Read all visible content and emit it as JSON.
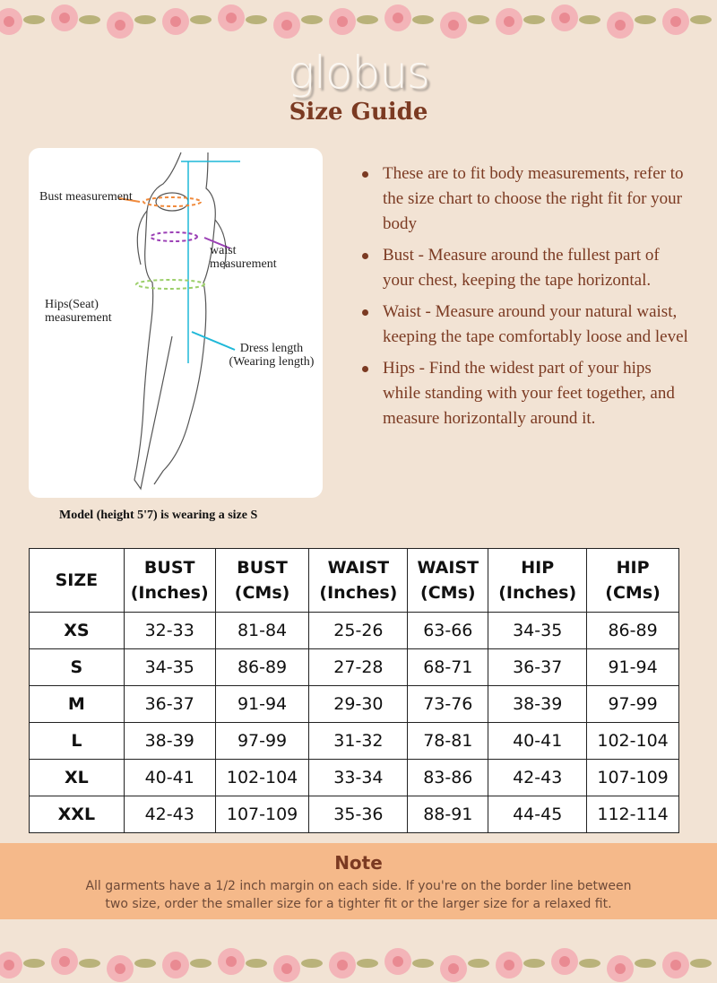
{
  "brand": {
    "logo": "globus",
    "title": "Size Guide"
  },
  "figure": {
    "labels": {
      "bust": "Bust measurement",
      "waist": "waist measurement",
      "hips": "Hips(Seat) measurement",
      "dress": "Dress length (Wearing length)"
    },
    "caption": "Model (height 5'7) is wearing a size S"
  },
  "bullets": [
    "These are to fit body measurements, refer to the size chart to choose the right fit for your body",
    "Bust - Measure around the fullest part of your chest, keeping the tape horizontal.",
    "Waist - Measure around your natural waist, keeping the tape comfortably loose and level",
    "Hips - Find the widest part of your hips while standing with your feet together, and measure horizontally around it."
  ],
  "table": {
    "headers": [
      [
        "SIZE",
        ""
      ],
      [
        "BUST",
        "(Inches)"
      ],
      [
        "BUST",
        "(CMs)"
      ],
      [
        "WAIST",
        "(Inches)"
      ],
      [
        "WAIST",
        "(CMs)"
      ],
      [
        "HIP",
        "(Inches)"
      ],
      [
        "HIP",
        "(CMs)"
      ]
    ],
    "rows": [
      [
        "XS",
        "32-33",
        "81-84",
        "25-26",
        "63-66",
        "34-35",
        "86-89"
      ],
      [
        "S",
        "34-35",
        "86-89",
        "27-28",
        "68-71",
        "36-37",
        "91-94"
      ],
      [
        "M",
        "36-37",
        "91-94",
        "29-30",
        "73-76",
        "38-39",
        "97-99"
      ],
      [
        "L",
        "38-39",
        "97-99",
        "31-32",
        "78-81",
        "40-41",
        "102-104"
      ],
      [
        "XL",
        "40-41",
        "102-104",
        "33-34",
        "83-86",
        "42-43",
        "107-109"
      ],
      [
        "XXL",
        "42-43",
        "107-109",
        "35-36",
        "88-91",
        "44-45",
        "112-114"
      ]
    ]
  },
  "note": {
    "title": "Note",
    "text": "All garments have a 1/2 inch margin on each side. If you're on the border line between two size, order the smaller size for a tighter fit or the larger size for a relaxed fit."
  },
  "colors": {
    "background": "#f2e3d4",
    "accent": "#7b3a22",
    "note_band": "#f5b98a",
    "tape_blue": "#1fb8d8",
    "tape_orange": "#f08a3c",
    "tape_purple": "#9b3fb5",
    "tape_green": "#9ccf6a"
  }
}
